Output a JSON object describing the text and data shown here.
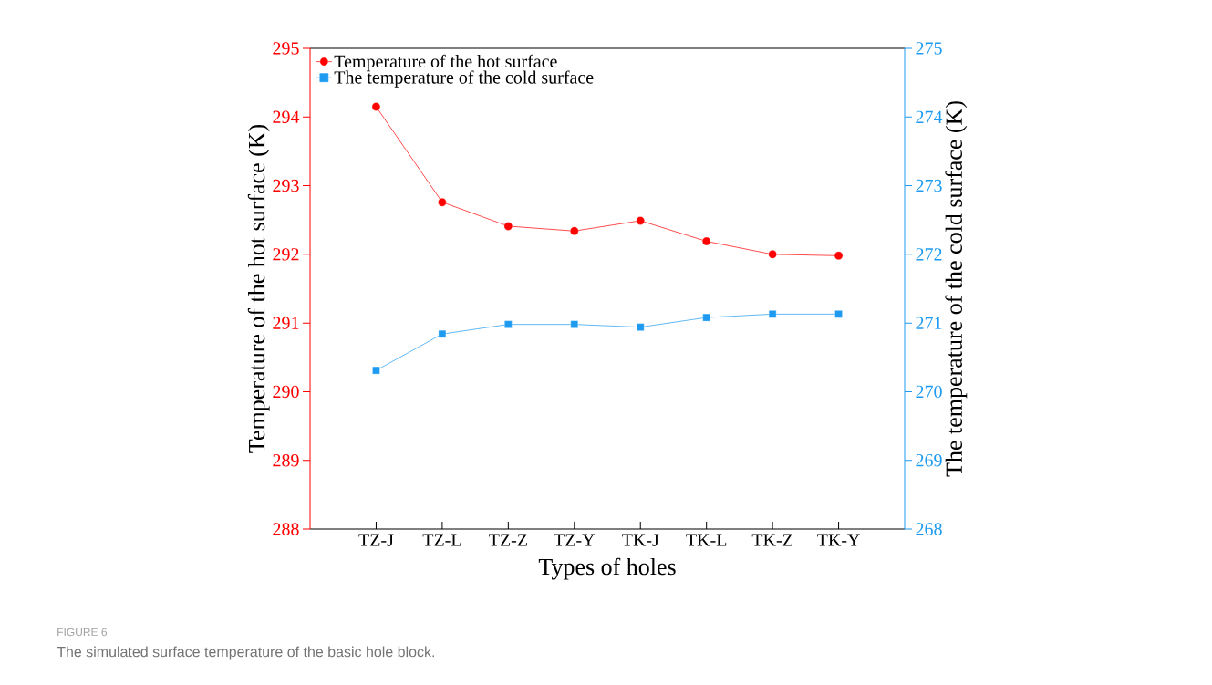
{
  "chart_data": {
    "type": "line",
    "xlabel": "Types of holes",
    "ylabel": "Temperature of the hot surface (K)",
    "y2label": "The temperature of the cold surface (K)",
    "categories": [
      "TZ-J",
      "TZ-L",
      "TZ-Z",
      "TZ-Y",
      "TK-J",
      "TK-L",
      "TK-Z",
      "TK-Y"
    ],
    "series": [
      {
        "name": "Temperature of the hot surface",
        "color": "#ff0000",
        "marker": "circle",
        "values": [
          294.15,
          292.76,
          292.41,
          292.34,
          292.49,
          292.19,
          292.0,
          291.98
        ]
      },
      {
        "name": "The temperature of the cold surface",
        "color": "#1e9bf0",
        "marker": "square",
        "axis": "y2",
        "values": [
          270.31,
          270.84,
          270.98,
          270.98,
          270.94,
          271.08,
          271.13,
          271.13
        ]
      }
    ],
    "ylim": [
      288,
      295
    ],
    "yticks": [
      288,
      289,
      290,
      291,
      292,
      293,
      294,
      295
    ],
    "y2lim": [
      268,
      275
    ],
    "y2ticks": [
      268,
      269,
      270,
      271,
      272,
      273,
      274,
      275
    ],
    "grid": false,
    "legend": "top left",
    "annotations": [
      "FIGURE 6",
      "The simulated surface temperature of the basic hole block."
    ]
  }
}
